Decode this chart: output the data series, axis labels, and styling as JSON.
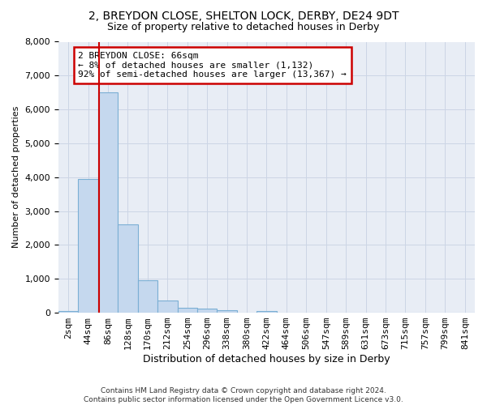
{
  "title1": "2, BREYDON CLOSE, SHELTON LOCK, DERBY, DE24 9DT",
  "title2": "Size of property relative to detached houses in Derby",
  "xlabel": "Distribution of detached houses by size in Derby",
  "ylabel": "Number of detached properties",
  "categories": [
    "2sqm",
    "44sqm",
    "86sqm",
    "128sqm",
    "170sqm",
    "212sqm",
    "254sqm",
    "296sqm",
    "338sqm",
    "380sqm",
    "422sqm",
    "464sqm",
    "506sqm",
    "547sqm",
    "589sqm",
    "631sqm",
    "673sqm",
    "715sqm",
    "757sqm",
    "799sqm",
    "841sqm"
  ],
  "values": [
    60,
    3950,
    6500,
    2600,
    950,
    350,
    140,
    110,
    70,
    0,
    60,
    0,
    0,
    0,
    0,
    0,
    0,
    0,
    0,
    0,
    0
  ],
  "bar_color": "#c5d8ee",
  "bar_edge_color": "#7bafd4",
  "vline_color": "#cc0000",
  "vline_x": 1.55,
  "annotation_text": "2 BREYDON CLOSE: 66sqm\n← 8% of detached houses are smaller (1,132)\n92% of semi-detached houses are larger (13,367) →",
  "annotation_box_color": "#ffffff",
  "annotation_box_edge_color": "#cc0000",
  "footnote": "Contains HM Land Registry data © Crown copyright and database right 2024.\nContains public sector information licensed under the Open Government Licence v3.0.",
  "ylim": [
    0,
    8000
  ],
  "yticks": [
    0,
    1000,
    2000,
    3000,
    4000,
    5000,
    6000,
    7000,
    8000
  ],
  "grid_color": "#ccd5e5",
  "bg_color": "#e8edf5",
  "title1_fontsize": 10,
  "title2_fontsize": 9,
  "xlabel_fontsize": 9,
  "ylabel_fontsize": 8,
  "tick_fontsize": 8,
  "footnote_fontsize": 6.5
}
